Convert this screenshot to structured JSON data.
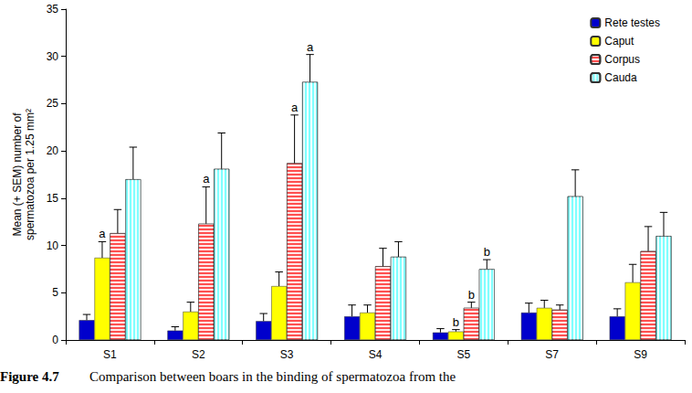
{
  "chart_data": {
    "type": "bar",
    "categories": [
      "S1",
      "S2",
      "S3",
      "S4",
      "S5",
      "S7",
      "S9"
    ],
    "series": [
      {
        "name": "Rete testes",
        "color": "#0000cc",
        "values": [
          2.1,
          1.0,
          2.0,
          2.5,
          0.8,
          2.9,
          2.5
        ],
        "errors": [
          0.6,
          0.4,
          0.8,
          1.2,
          0.4,
          1.0,
          0.8
        ],
        "letters": [
          null,
          null,
          null,
          null,
          null,
          null,
          null
        ]
      },
      {
        "name": "Caput",
        "color": "#ffff00",
        "values": [
          8.7,
          3.0,
          5.7,
          2.9,
          0.9,
          3.4,
          6.1
        ],
        "errors": [
          1.7,
          1.0,
          1.5,
          0.8,
          0.2,
          0.8,
          1.9
        ],
        "letters": [
          "a",
          null,
          null,
          null,
          "b",
          null,
          null
        ]
      },
      {
        "name": "Corpus",
        "color": "#ff5050",
        "values": [
          11.3,
          12.3,
          18.7,
          7.8,
          3.4,
          3.2,
          9.4
        ],
        "errors": [
          2.5,
          3.9,
          5.1,
          1.9,
          0.6,
          0.5,
          2.6
        ],
        "letters": [
          null,
          "a",
          "a",
          null,
          "b",
          null,
          null
        ]
      },
      {
        "name": "Cauda",
        "color": "#80ffff",
        "values": [
          17.0,
          18.1,
          27.3,
          8.8,
          7.5,
          15.2,
          11.0
        ],
        "errors": [
          3.4,
          3.8,
          2.9,
          1.6,
          1.0,
          2.8,
          2.5
        ],
        "letters": [
          null,
          null,
          "a",
          null,
          "b",
          null,
          null
        ]
      }
    ],
    "ylabel": "Mean (+ SEM) number of\nspermatozoa per 1.25 mm²",
    "ylim": [
      0,
      35
    ],
    "yticks": [
      0,
      5,
      10,
      15,
      20,
      25,
      30,
      35
    ],
    "grid": false,
    "legend": "upper right",
    "caption": {
      "label": "Figure 4.7",
      "text": "Comparison between boars in the binding of spermatozoa from the"
    }
  }
}
